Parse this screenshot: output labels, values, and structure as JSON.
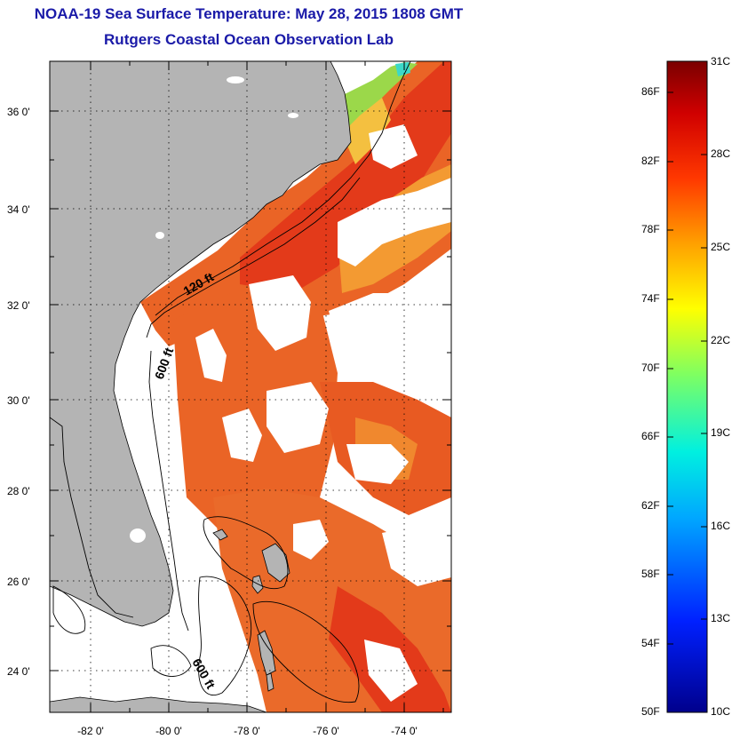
{
  "title": "NOAA-19 Sea Surface Temperature:  May 28, 2015 1808 GMT",
  "subtitle": "Rutgers Coastal Ocean Observation Lab",
  "lat_labels": [
    "36 0'",
    "34 0'",
    "32 0'",
    "30 0'",
    "28 0'",
    "26 0'",
    "24 0'"
  ],
  "lon_labels": [
    "-82 0'",
    "-80 0'",
    "-78 0'",
    "-76 0'",
    "-74 0'"
  ],
  "contours": {
    "label_120": "120 ft",
    "label_600_north": "600 ft",
    "label_600_south": "600 ft"
  },
  "colorbar": {
    "fahrenheit": [
      "86F",
      "82F",
      "78F",
      "74F",
      "70F",
      "66F",
      "62F",
      "58F",
      "54F",
      "50F"
    ],
    "celsius": [
      "31C",
      "28C",
      "25C",
      "22C",
      "19C",
      "16C",
      "13C",
      "10C"
    ],
    "min_c": 10,
    "max_c": 31
  },
  "colors": {
    "land": "#b4b4b4",
    "sst_warm": "#e85a1e",
    "sst_hot": "#e02a14",
    "title": "#1a1aa8"
  }
}
